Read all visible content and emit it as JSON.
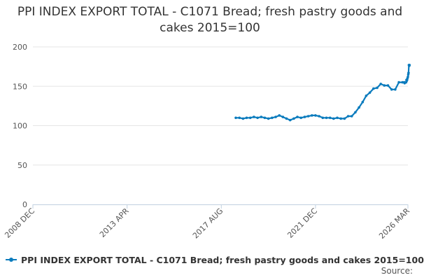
{
  "chart_data": {
    "type": "line",
    "title": "PPI INDEX EXPORT TOTAL - C1071 Bread; fresh pastry goods and cakes 2015=100",
    "xlabel": "",
    "ylabel": "",
    "ylim": [
      0,
      200
    ],
    "yticks": [
      0,
      50,
      100,
      150,
      200
    ],
    "xlim": [
      "2008-12",
      "2026-03"
    ],
    "xticks": [
      {
        "date": "2008-12",
        "label": "2008 DEC"
      },
      {
        "date": "2013-04",
        "label": "2013 APR"
      },
      {
        "date": "2017-08",
        "label": "2017 AUG"
      },
      {
        "date": "2021-12",
        "label": "2021 DEC"
      },
      {
        "date": "2026-03",
        "label": "2026 MAR"
      }
    ],
    "grid": true,
    "legend": "bottom-left",
    "series": [
      {
        "name": "PPI INDEX EXPORT TOTAL - C1071 Bread; fresh pastry goods and cakes 2015=100",
        "color": "#0a7bbd",
        "points": [
          [
            "2018-04",
            110
          ],
          [
            "2018-06",
            110
          ],
          [
            "2018-08",
            109
          ],
          [
            "2018-10",
            110
          ],
          [
            "2018-12",
            110
          ],
          [
            "2019-02",
            111
          ],
          [
            "2019-04",
            110
          ],
          [
            "2019-06",
            111
          ],
          [
            "2019-08",
            110
          ],
          [
            "2019-10",
            109
          ],
          [
            "2019-12",
            110
          ],
          [
            "2020-02",
            111
          ],
          [
            "2020-04",
            113
          ],
          [
            "2020-06",
            111
          ],
          [
            "2020-08",
            109
          ],
          [
            "2020-10",
            107
          ],
          [
            "2020-12",
            109
          ],
          [
            "2021-02",
            111
          ],
          [
            "2021-04",
            110
          ],
          [
            "2021-06",
            111
          ],
          [
            "2021-08",
            112
          ],
          [
            "2021-10",
            113
          ],
          [
            "2021-12",
            113
          ],
          [
            "2022-02",
            112
          ],
          [
            "2022-04",
            110
          ],
          [
            "2022-06",
            110
          ],
          [
            "2022-08",
            110
          ],
          [
            "2022-10",
            109
          ],
          [
            "2022-12",
            110
          ],
          [
            "2023-02",
            109
          ],
          [
            "2023-04",
            109
          ],
          [
            "2023-06",
            112
          ],
          [
            "2023-08",
            112
          ],
          [
            "2023-10",
            117
          ],
          [
            "2023-12",
            123
          ],
          [
            "2024-02",
            130
          ],
          [
            "2024-04",
            138
          ],
          [
            "2024-06",
            142
          ],
          [
            "2024-08",
            147
          ],
          [
            "2024-10",
            148
          ],
          [
            "2024-12",
            153
          ],
          [
            "2025-02",
            151
          ],
          [
            "2025-04",
            151
          ],
          [
            "2025-06",
            146
          ],
          [
            "2025-08",
            146
          ],
          [
            "2025-10",
            155
          ],
          [
            "2025-12",
            155
          ],
          [
            "2026-01",
            155
          ],
          [
            "2026-01",
            154
          ],
          [
            "2026-02",
            155
          ],
          [
            "2026-02",
            158
          ],
          [
            "2026-02",
            157
          ],
          [
            "2026-02",
            158
          ],
          [
            "2026-02",
            160
          ],
          [
            "2026-03",
            162
          ],
          [
            "2026-03",
            165
          ],
          [
            "2026-03",
            167
          ],
          [
            "2026-03",
            177
          ],
          [
            "2026-03",
            176
          ],
          [
            "2026-03",
            177
          ]
        ]
      }
    ]
  },
  "legend": {
    "label": "PPI INDEX EXPORT TOTAL - C1071 Bread; fresh pastry goods and cakes 2015=100"
  },
  "source": {
    "label": "Source:"
  }
}
